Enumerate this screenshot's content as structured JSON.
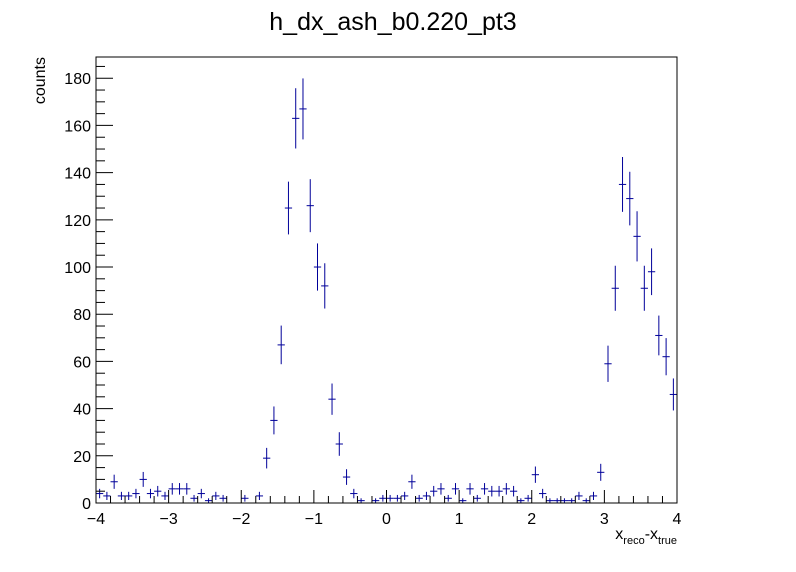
{
  "chart_data": {
    "type": "scatter",
    "style": "histogram with error bars",
    "title": "h_dx_ash_b0.220_pt3",
    "xlabel": {
      "main": "x",
      "sub1": "reco",
      "mid": "-x",
      "sub2": "true"
    },
    "ylabel": "counts",
    "xlim": [
      -4,
      4
    ],
    "ylim": [
      0,
      189
    ],
    "x_ticks": [
      -4,
      -3,
      -2,
      -1,
      0,
      1,
      2,
      3,
      4
    ],
    "x_tick_labels": [
      "−4",
      "−3",
      "−2",
      "−1",
      "0",
      "1",
      "2",
      "3",
      "4"
    ],
    "y_ticks": [
      0,
      20,
      40,
      60,
      80,
      100,
      120,
      140,
      160,
      180
    ],
    "y_tick_labels": [
      "0",
      "20",
      "40",
      "60",
      "80",
      "100",
      "120",
      "140",
      "160",
      "180"
    ],
    "bin_width": 0.1,
    "grid": false,
    "marker_color": "#000099",
    "series": [
      {
        "x": [
          -3.95,
          -3.85,
          -3.75,
          -3.65,
          -3.55,
          -3.45,
          -3.35,
          -3.25,
          -3.15,
          -3.05,
          -2.95,
          -2.85,
          -2.75,
          -2.65,
          -2.55,
          -2.45,
          -2.35,
          -2.25,
          -2.15,
          -2.05,
          -1.95,
          -1.85,
          -1.75,
          -1.65,
          -1.55,
          -1.45,
          -1.35,
          -1.25,
          -1.15,
          -1.05,
          -0.95,
          -0.85,
          -0.75,
          -0.65,
          -0.55,
          -0.45,
          -0.35,
          -0.25,
          -0.15,
          -0.05,
          0.05,
          0.15,
          0.25,
          0.35,
          0.45,
          0.55,
          0.65,
          0.75,
          0.85,
          0.95,
          1.05,
          1.15,
          1.25,
          1.35,
          1.45,
          1.55,
          1.65,
          1.75,
          1.85,
          1.95,
          2.05,
          2.15,
          2.25,
          2.35,
          2.45,
          2.55,
          2.65,
          2.75,
          2.85,
          2.95,
          3.05,
          3.15,
          3.25,
          3.35,
          3.45,
          3.55,
          3.65,
          3.75,
          3.85,
          3.95
        ],
        "y": [
          4,
          3,
          9,
          3,
          3,
          4,
          10,
          4,
          5,
          3,
          6,
          6,
          6,
          2,
          4,
          1,
          3,
          2,
          0,
          0,
          2,
          0,
          3,
          19,
          35,
          67,
          125,
          163,
          167,
          126,
          100,
          92,
          44,
          25,
          11,
          4,
          1,
          0,
          1,
          2,
          2,
          2,
          3,
          9,
          2,
          3,
          5,
          6,
          2,
          6,
          1,
          6,
          2,
          6,
          5,
          5,
          6,
          5,
          1,
          2,
          12,
          4,
          1,
          1,
          1,
          1,
          3,
          1,
          3,
          13,
          59,
          91,
          135,
          129,
          113,
          91,
          98,
          71,
          62,
          46
        ]
      }
    ]
  }
}
